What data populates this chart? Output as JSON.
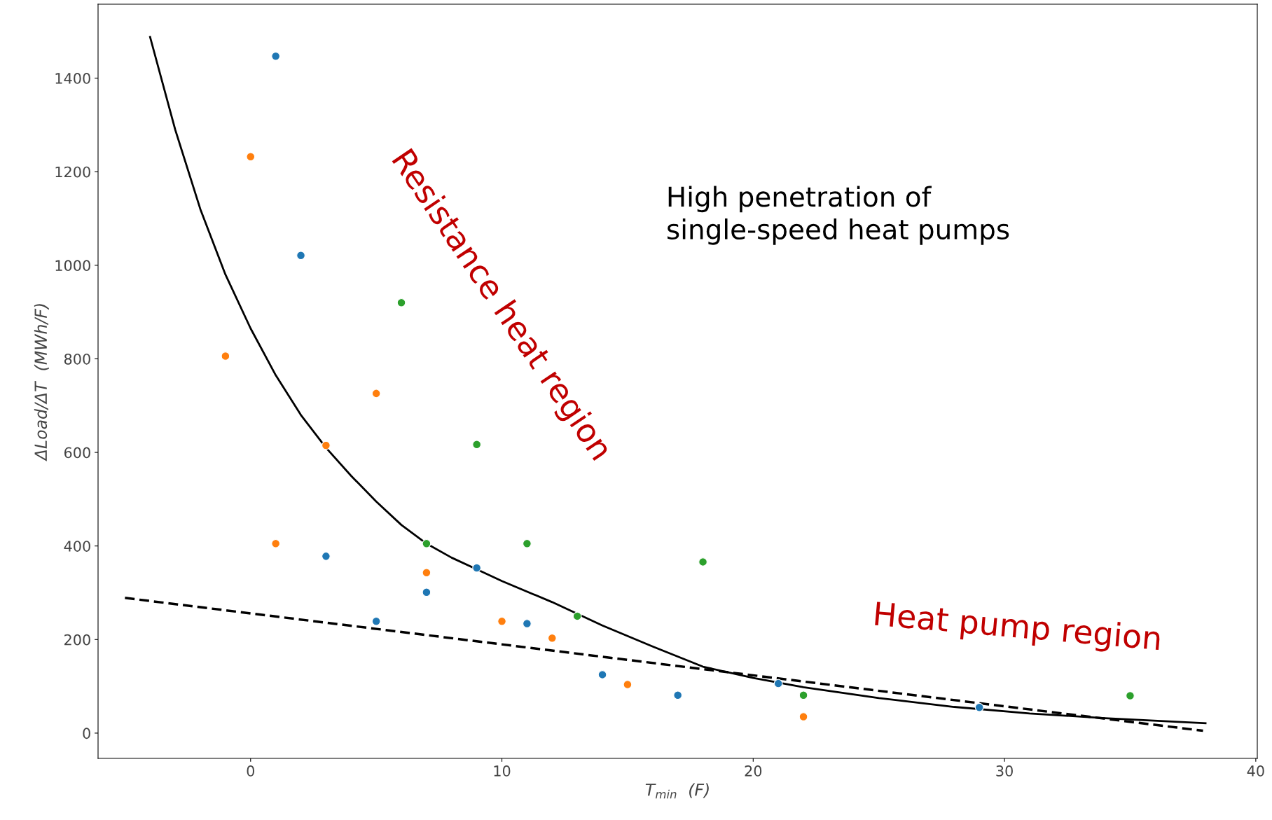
{
  "chart_data": {
    "type": "scatter",
    "xlabel": "T$_{min}$  (F)",
    "ylabel": "ΔLoad/ΔT  (MWh/F)",
    "xlim": [
      -6.07,
      40.06
    ],
    "ylim": [
      -54,
      1558
    ],
    "xticks": [
      0,
      10,
      20,
      30,
      40
    ],
    "yticks": [
      0,
      200,
      400,
      600,
      800,
      1000,
      1200,
      1400
    ],
    "grid": false,
    "legend": false,
    "marker": "circle",
    "series": [
      {
        "color": "#1f77b4",
        "x": [
          1,
          2,
          3,
          5,
          7,
          9,
          11,
          14,
          17,
          21,
          29
        ],
        "values": [
          1447,
          1021,
          378,
          239,
          301,
          353,
          234,
          125,
          81,
          106,
          55
        ]
      },
      {
        "color": "#ff7f0e",
        "x": [
          0,
          -1,
          1,
          3,
          5,
          7,
          10,
          12,
          15,
          22
        ],
        "values": [
          1232,
          806,
          405,
          615,
          726,
          343,
          239,
          203,
          104,
          35
        ]
      },
      {
        "color": "#2ca02c",
        "x": [
          6,
          9,
          7,
          11,
          13,
          18,
          22,
          35
        ],
        "values": [
          920,
          617,
          405,
          405,
          250,
          366,
          81,
          80
        ]
      },
      {
        "type": "line",
        "color": "#000000",
        "line_style": "solid",
        "marker": "none",
        "x": [
          -4,
          -3,
          -2,
          -1,
          0,
          1,
          2,
          3,
          4,
          5,
          6,
          7,
          8,
          9,
          10,
          12,
          14,
          16,
          18,
          20,
          22,
          25,
          28,
          31,
          34,
          38
        ],
        "values": [
          1488,
          1290,
          1120,
          980,
          865,
          765,
          680,
          610,
          550,
          495,
          445,
          405,
          375,
          350,
          325,
          280,
          230,
          185,
          142,
          118,
          98,
          75,
          56,
          42,
          32,
          21
        ]
      },
      {
        "type": "line",
        "color": "#000000",
        "line_style": "dashed",
        "marker": "none",
        "x": [
          -5,
          37.9
        ],
        "values": [
          289,
          5
        ]
      }
    ],
    "annotations": [
      "Resistance heat region",
      "Heat pump region",
      "High penetration of\nsingle-speed heat pumps"
    ]
  }
}
